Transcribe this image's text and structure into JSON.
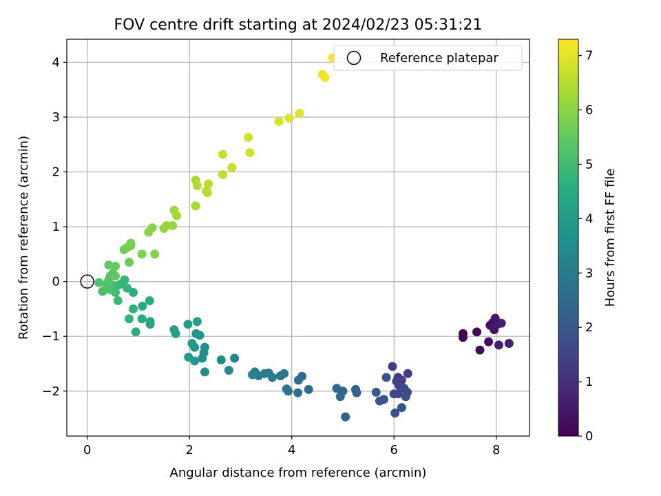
{
  "chart_data": {
    "type": "scatter",
    "title": "FOV centre drift starting at 2024/02/23 05:31:21",
    "xlabel": "Angular distance from reference (arcmin)",
    "ylabel": "Rotation from reference (arcmin)",
    "xlim": [
      -0.4,
      8.65
    ],
    "ylim": [
      -2.82,
      4.42
    ],
    "xticks": [
      0,
      2,
      4,
      6,
      8
    ],
    "yticks": [
      -2,
      -1,
      0,
      1,
      2,
      3,
      4
    ],
    "grid": true,
    "legend": {
      "position": "top-right",
      "entries": [
        "Reference platepar"
      ]
    },
    "reference_point": {
      "x": 0,
      "y": 0,
      "label": "Reference platepar"
    },
    "colorbar": {
      "label": "Hours from first FF file",
      "range": [
        0,
        7.3
      ],
      "ticks": [
        0,
        1,
        2,
        3,
        4,
        5,
        6,
        7
      ],
      "colormap": "viridis"
    },
    "points": [
      {
        "x": 7.35,
        "y": -0.95,
        "h": 0.05
      },
      {
        "x": 7.35,
        "y": -1.02,
        "h": 0.1
      },
      {
        "x": 7.62,
        "y": -0.92,
        "h": 0.15
      },
      {
        "x": 7.68,
        "y": -1.25,
        "h": 0.2
      },
      {
        "x": 7.85,
        "y": -1.1,
        "h": 0.25
      },
      {
        "x": 7.88,
        "y": -0.8,
        "h": 0.3
      },
      {
        "x": 7.93,
        "y": -0.75,
        "h": 0.35
      },
      {
        "x": 7.96,
        "y": -0.88,
        "h": 0.4
      },
      {
        "x": 7.98,
        "y": -0.67,
        "h": 0.45
      },
      {
        "x": 8.02,
        "y": -0.78,
        "h": 0.5
      },
      {
        "x": 8.05,
        "y": -1.16,
        "h": 0.55
      },
      {
        "x": 8.1,
        "y": -0.76,
        "h": 0.6
      },
      {
        "x": 8.25,
        "y": -1.13,
        "h": 0.65
      },
      {
        "x": 5.97,
        "y": -1.55,
        "h": 1.2
      },
      {
        "x": 6.08,
        "y": -1.75,
        "h": 1.25
      },
      {
        "x": 6.27,
        "y": -1.68,
        "h": 1.3
      },
      {
        "x": 6.05,
        "y": -1.82,
        "h": 1.35
      },
      {
        "x": 6.15,
        "y": -1.8,
        "h": 1.4
      },
      {
        "x": 6.1,
        "y": -1.9,
        "h": 1.45
      },
      {
        "x": 6.0,
        "y": -2.05,
        "h": 1.5
      },
      {
        "x": 6.08,
        "y": -2.05,
        "h": 1.55
      },
      {
        "x": 6.2,
        "y": -1.95,
        "h": 1.6
      },
      {
        "x": 6.26,
        "y": -2.02,
        "h": 1.65
      },
      {
        "x": 6.23,
        "y": -2.1,
        "h": 1.7
      },
      {
        "x": 6.02,
        "y": -2.4,
        "h": 1.75
      },
      {
        "x": 6.15,
        "y": -2.3,
        "h": 1.8
      },
      {
        "x": 5.85,
        "y": -1.75,
        "h": 1.85
      },
      {
        "x": 5.8,
        "y": -2.15,
        "h": 1.9
      },
      {
        "x": 5.72,
        "y": -2.18,
        "h": 1.95
      },
      {
        "x": 5.65,
        "y": -2.02,
        "h": 2.0
      },
      {
        "x": 5.27,
        "y": -2.03,
        "h": 2.2
      },
      {
        "x": 5.25,
        "y": -1.97,
        "h": 2.25
      },
      {
        "x": 5.05,
        "y": -2.47,
        "h": 2.3
      },
      {
        "x": 5.0,
        "y": -2.0,
        "h": 2.35
      },
      {
        "x": 4.95,
        "y": -2.1,
        "h": 2.4
      },
      {
        "x": 4.88,
        "y": -1.95,
        "h": 2.45
      },
      {
        "x": 4.33,
        "y": -1.97,
        "h": 2.55
      },
      {
        "x": 4.2,
        "y": -1.73,
        "h": 2.6
      },
      {
        "x": 4.13,
        "y": -1.8,
        "h": 2.65
      },
      {
        "x": 4.12,
        "y": -2.03,
        "h": 2.7
      },
      {
        "x": 3.93,
        "y": -2.0,
        "h": 2.75
      },
      {
        "x": 3.9,
        "y": -1.96,
        "h": 2.8
      },
      {
        "x": 3.85,
        "y": -1.68,
        "h": 2.85
      },
      {
        "x": 3.78,
        "y": -1.72,
        "h": 2.9
      },
      {
        "x": 3.62,
        "y": -1.75,
        "h": 2.95
      },
      {
        "x": 3.55,
        "y": -1.67,
        "h": 3.0
      },
      {
        "x": 3.47,
        "y": -1.68,
        "h": 3.05
      },
      {
        "x": 3.35,
        "y": -1.72,
        "h": 3.1
      },
      {
        "x": 3.28,
        "y": -1.65,
        "h": 3.15
      },
      {
        "x": 3.23,
        "y": -1.7,
        "h": 3.2
      },
      {
        "x": 2.88,
        "y": -1.4,
        "h": 3.35
      },
      {
        "x": 2.77,
        "y": -1.62,
        "h": 3.4
      },
      {
        "x": 2.62,
        "y": -1.43,
        "h": 3.45
      },
      {
        "x": 2.3,
        "y": -1.65,
        "h": 3.5
      },
      {
        "x": 2.3,
        "y": -1.2,
        "h": 3.55
      },
      {
        "x": 2.28,
        "y": -1.3,
        "h": 3.6
      },
      {
        "x": 2.25,
        "y": -1.4,
        "h": 3.65
      },
      {
        "x": 2.2,
        "y": -0.98,
        "h": 3.7
      },
      {
        "x": 2.13,
        "y": -0.95,
        "h": 3.75
      },
      {
        "x": 2.1,
        "y": -1.2,
        "h": 3.8
      },
      {
        "x": 2.1,
        "y": -1.45,
        "h": 3.85
      },
      {
        "x": 2.05,
        "y": -1.13,
        "h": 3.9
      },
      {
        "x": 1.98,
        "y": -1.38,
        "h": 3.95
      },
      {
        "x": 1.97,
        "y": -0.78,
        "h": 4.0
      },
      {
        "x": 2.15,
        "y": -0.73,
        "h": 4.05
      },
      {
        "x": 1.7,
        "y": -0.88,
        "h": 4.1
      },
      {
        "x": 1.73,
        "y": -0.95,
        "h": 4.15
      },
      {
        "x": 1.23,
        "y": -0.73,
        "h": 4.3
      },
      {
        "x": 1.23,
        "y": -0.78,
        "h": 4.35
      },
      {
        "x": 1.22,
        "y": -0.35,
        "h": 4.4
      },
      {
        "x": 1.08,
        "y": -0.45,
        "h": 4.45
      },
      {
        "x": 1.07,
        "y": -0.68,
        "h": 4.5
      },
      {
        "x": 0.95,
        "y": -0.92,
        "h": 4.55
      },
      {
        "x": 0.9,
        "y": -0.2,
        "h": 4.6
      },
      {
        "x": 0.9,
        "y": -0.5,
        "h": 4.65
      },
      {
        "x": 0.82,
        "y": -0.68,
        "h": 4.7
      },
      {
        "x": 0.78,
        "y": -0.12,
        "h": 4.75
      },
      {
        "x": 0.73,
        "y": 0.03,
        "h": 4.8
      },
      {
        "x": 0.65,
        "y": -0.05,
        "h": 4.85
      },
      {
        "x": 0.6,
        "y": -0.35,
        "h": 4.9
      },
      {
        "x": 0.58,
        "y": -0.08,
        "h": 4.95
      },
      {
        "x": 0.55,
        "y": -0.2,
        "h": 5.0
      },
      {
        "x": 0.48,
        "y": -0.08,
        "h": 5.05
      },
      {
        "x": 0.45,
        "y": -0.15,
        "h": 5.1
      },
      {
        "x": 0.3,
        "y": -0.18,
        "h": 5.15
      },
      {
        "x": 0.23,
        "y": -0.02,
        "h": 5.2
      },
      {
        "x": 0.38,
        "y": -0.05,
        "h": 5.25
      },
      {
        "x": 0.42,
        "y": 0.03,
        "h": 5.3
      },
      {
        "x": 0.45,
        "y": 0.1,
        "h": 5.35
      },
      {
        "x": 0.5,
        "y": 0.15,
        "h": 5.4
      },
      {
        "x": 0.55,
        "y": 0.1,
        "h": 5.45
      },
      {
        "x": 0.42,
        "y": 0.3,
        "h": 5.5
      },
      {
        "x": 0.55,
        "y": 0.28,
        "h": 5.55
      },
      {
        "x": 0.82,
        "y": 0.35,
        "h": 5.6
      },
      {
        "x": 0.72,
        "y": 0.58,
        "h": 5.65
      },
      {
        "x": 0.78,
        "y": 0.62,
        "h": 5.7
      },
      {
        "x": 0.85,
        "y": 0.65,
        "h": 5.75
      },
      {
        "x": 0.85,
        "y": 0.7,
        "h": 5.8
      },
      {
        "x": 1.07,
        "y": 0.5,
        "h": 5.85
      },
      {
        "x": 1.32,
        "y": 0.5,
        "h": 5.9
      },
      {
        "x": 1.2,
        "y": 0.9,
        "h": 5.95
      },
      {
        "x": 1.27,
        "y": 0.98,
        "h": 6.0
      },
      {
        "x": 1.5,
        "y": 0.97,
        "h": 6.05
      },
      {
        "x": 1.55,
        "y": 1.02,
        "h": 6.1
      },
      {
        "x": 1.67,
        "y": 1.02,
        "h": 6.15
      },
      {
        "x": 1.7,
        "y": 1.3,
        "h": 6.2
      },
      {
        "x": 1.75,
        "y": 1.2,
        "h": 6.25
      },
      {
        "x": 2.12,
        "y": 1.38,
        "h": 6.3
      },
      {
        "x": 2.12,
        "y": 1.85,
        "h": 6.35
      },
      {
        "x": 2.15,
        "y": 1.75,
        "h": 6.4
      },
      {
        "x": 2.33,
        "y": 1.65,
        "h": 6.45
      },
      {
        "x": 2.35,
        "y": 1.62,
        "h": 6.5
      },
      {
        "x": 2.37,
        "y": 1.78,
        "h": 6.55
      },
      {
        "x": 2.65,
        "y": 1.95,
        "h": 6.6
      },
      {
        "x": 2.65,
        "y": 2.32,
        "h": 6.65
      },
      {
        "x": 2.83,
        "y": 2.08,
        "h": 6.7
      },
      {
        "x": 3.15,
        "y": 2.63,
        "h": 6.75
      },
      {
        "x": 3.18,
        "y": 2.35,
        "h": 6.8
      },
      {
        "x": 3.75,
        "y": 2.92,
        "h": 6.85
      },
      {
        "x": 3.95,
        "y": 2.98,
        "h": 6.9
      },
      {
        "x": 4.15,
        "y": 3.07,
        "h": 6.95
      },
      {
        "x": 4.6,
        "y": 3.78,
        "h": 7.15
      },
      {
        "x": 4.65,
        "y": 3.72,
        "h": 7.2
      },
      {
        "x": 4.8,
        "y": 4.08,
        "h": 7.25
      }
    ]
  }
}
